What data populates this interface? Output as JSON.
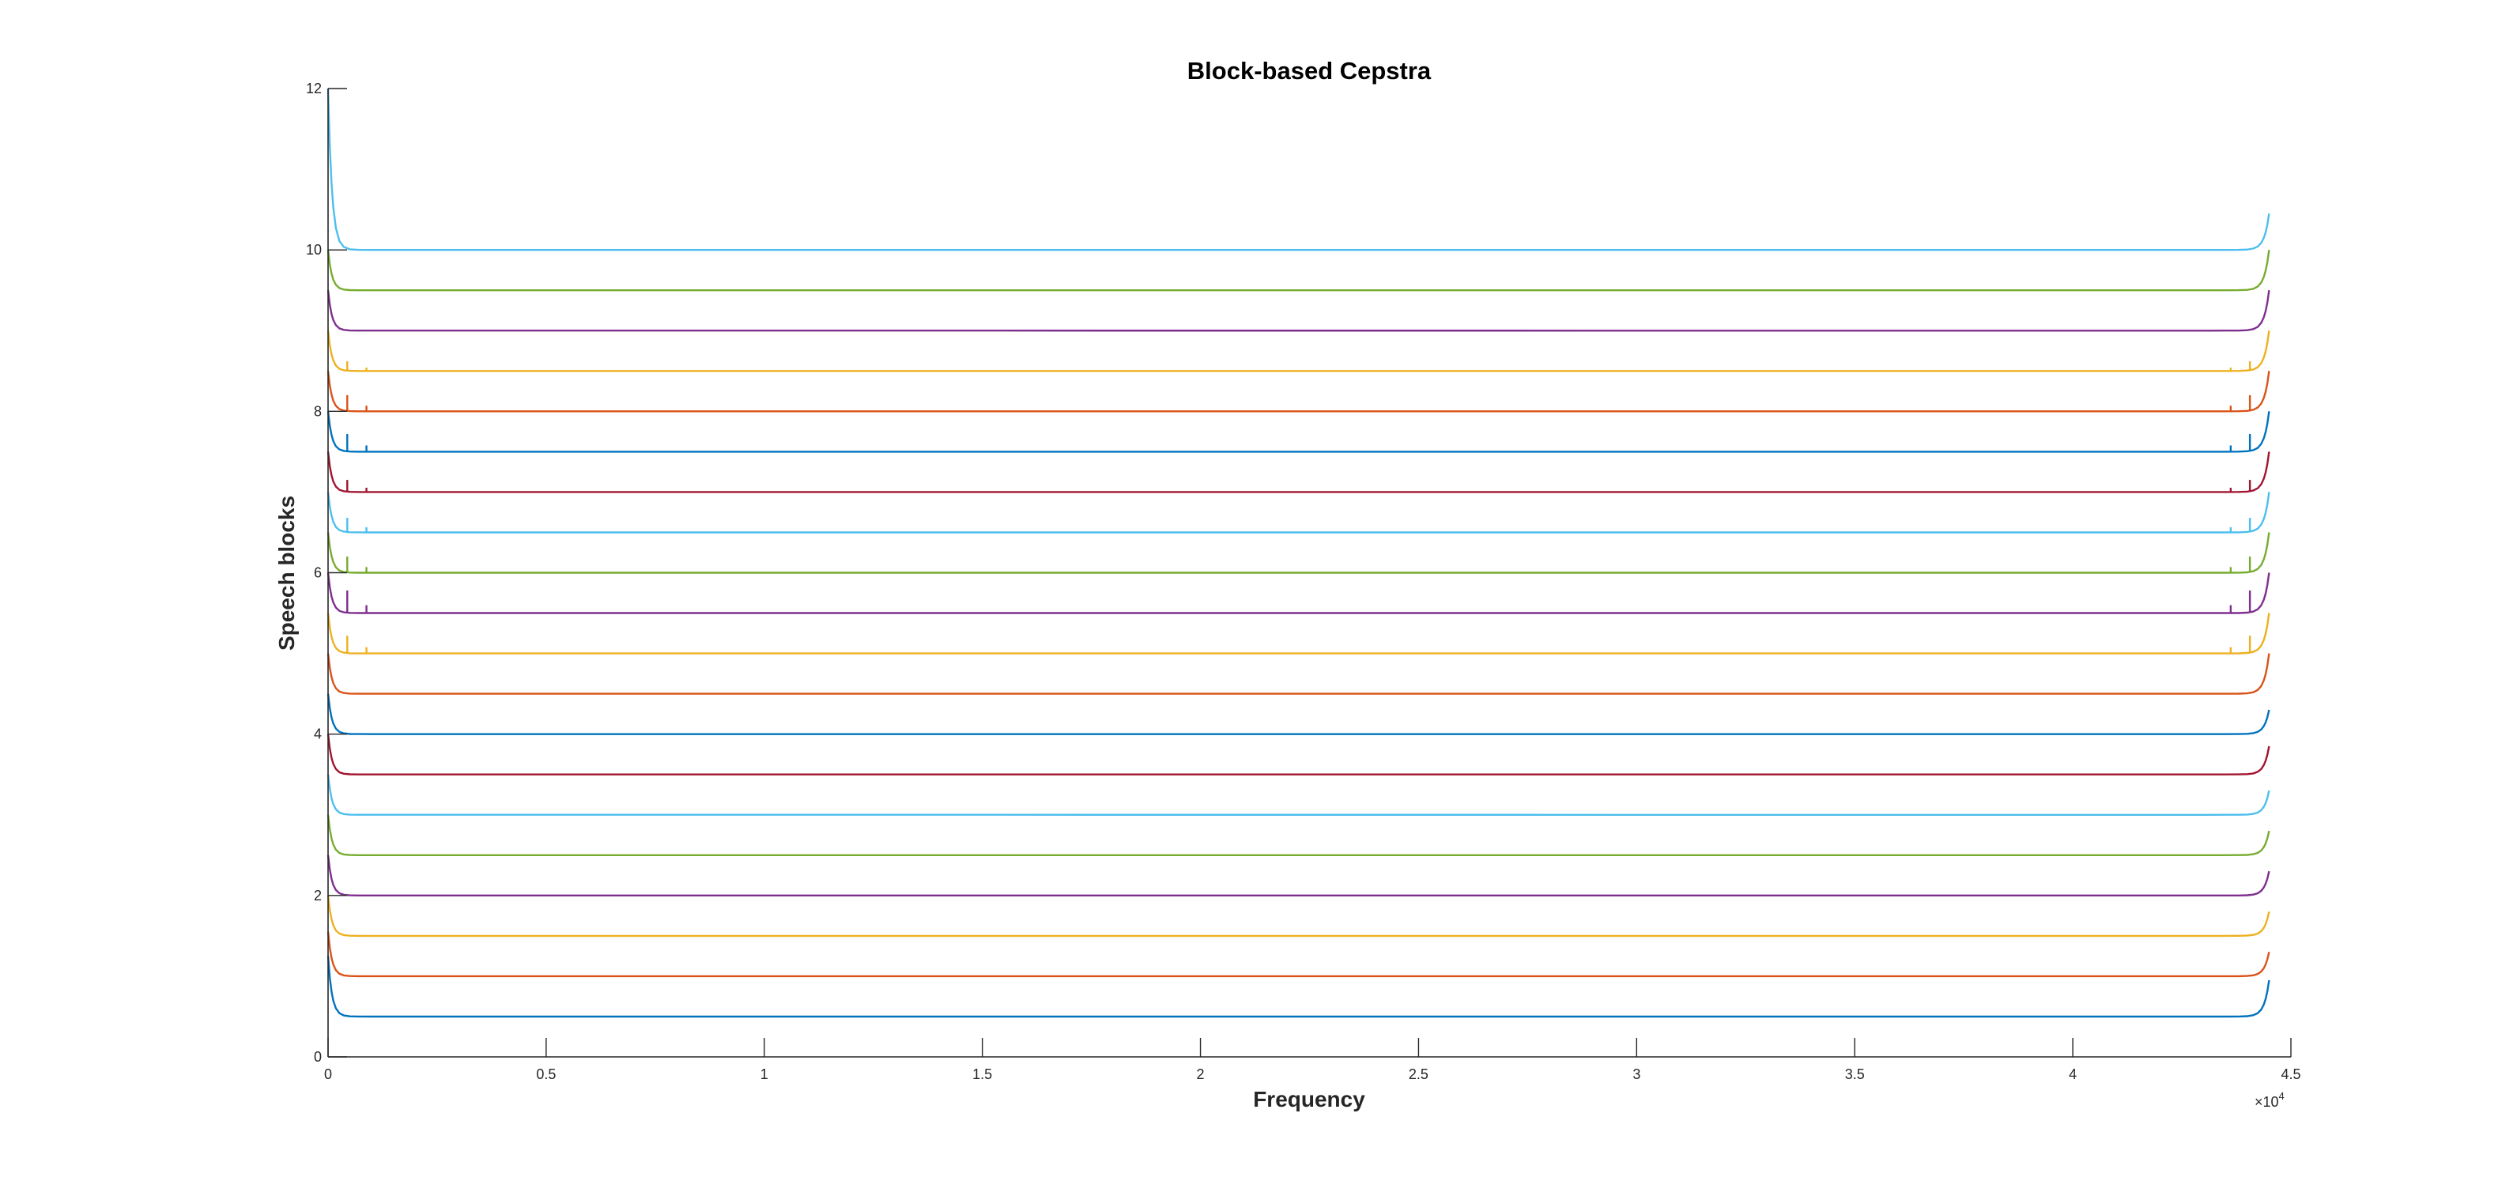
{
  "chart_data": {
    "type": "line",
    "title": "Block-based Cepstra",
    "xlabel": "Frequency",
    "ylabel": "Speech blocks",
    "xlim": [
      0,
      45000
    ],
    "ylim": [
      0,
      12
    ],
    "x_ticks": [
      "0",
      "0.5",
      "1",
      "1.5",
      "2",
      "2.5",
      "3",
      "3.5",
      "4",
      "4.5"
    ],
    "x_tick_values": [
      0,
      5000,
      10000,
      15000,
      20000,
      25000,
      30000,
      35000,
      40000,
      45000
    ],
    "x_exponent_base": "×10",
    "x_exponent_power": "4",
    "y_ticks": [
      "0",
      "2",
      "4",
      "6",
      "8",
      "10",
      "12"
    ],
    "y_tick_values": [
      0,
      2,
      4,
      6,
      8,
      10,
      12
    ],
    "grid": false,
    "legend": "none",
    "trace_x_end": 44500,
    "series": [
      {
        "baseline": 0.5,
        "color": "#0072BD",
        "start_peak": 1.25,
        "end_peak": 0.95,
        "spike": 0
      },
      {
        "baseline": 1.0,
        "color": "#D95319",
        "start_peak": 1.55,
        "end_peak": 1.3,
        "spike": 0
      },
      {
        "baseline": 1.5,
        "color": "#EDB120",
        "start_peak": 2.0,
        "end_peak": 1.8,
        "spike": 0
      },
      {
        "baseline": 2.0,
        "color": "#7E2F8E",
        "start_peak": 2.5,
        "end_peak": 2.3,
        "spike": 0
      },
      {
        "baseline": 2.5,
        "color": "#77AC30",
        "start_peak": 3.0,
        "end_peak": 2.8,
        "spike": 0
      },
      {
        "baseline": 3.0,
        "color": "#4DBEEE",
        "start_peak": 3.5,
        "end_peak": 3.3,
        "spike": 0
      },
      {
        "baseline": 3.5,
        "color": "#A2142F",
        "start_peak": 4.0,
        "end_peak": 3.85,
        "spike": 0
      },
      {
        "baseline": 4.0,
        "color": "#0072BD",
        "start_peak": 4.5,
        "end_peak": 4.3,
        "spike": 0
      },
      {
        "baseline": 4.5,
        "color": "#D95319",
        "start_peak": 5.0,
        "end_peak": 5.0,
        "spike": 0
      },
      {
        "baseline": 5.0,
        "color": "#EDB120",
        "start_peak": 5.5,
        "end_peak": 5.5,
        "spike": 0.22
      },
      {
        "baseline": 5.5,
        "color": "#7E2F8E",
        "start_peak": 6.0,
        "end_peak": 6.0,
        "spike": 0.28
      },
      {
        "baseline": 6.0,
        "color": "#77AC30",
        "start_peak": 6.5,
        "end_peak": 6.5,
        "spike": 0.2
      },
      {
        "baseline": 6.5,
        "color": "#4DBEEE",
        "start_peak": 7.0,
        "end_peak": 7.0,
        "spike": 0.18
      },
      {
        "baseline": 7.0,
        "color": "#A2142F",
        "start_peak": 7.5,
        "end_peak": 7.5,
        "spike": 0.15
      },
      {
        "baseline": 7.5,
        "color": "#0072BD",
        "start_peak": 8.0,
        "end_peak": 8.0,
        "spike": 0.22
      },
      {
        "baseline": 8.0,
        "color": "#D95319",
        "start_peak": 8.5,
        "end_peak": 8.5,
        "spike": 0.2
      },
      {
        "baseline": 8.5,
        "color": "#EDB120",
        "start_peak": 9.0,
        "end_peak": 9.0,
        "spike": 0.12
      },
      {
        "baseline": 9.0,
        "color": "#7E2F8E",
        "start_peak": 9.5,
        "end_peak": 9.5,
        "spike": 0
      },
      {
        "baseline": 9.5,
        "color": "#77AC30",
        "start_peak": 10.0,
        "end_peak": 10.0,
        "spike": 0
      },
      {
        "baseline": 10.0,
        "color": "#4DBEEE",
        "start_peak": 12.0,
        "end_peak": 10.45,
        "spike": 0
      }
    ]
  }
}
